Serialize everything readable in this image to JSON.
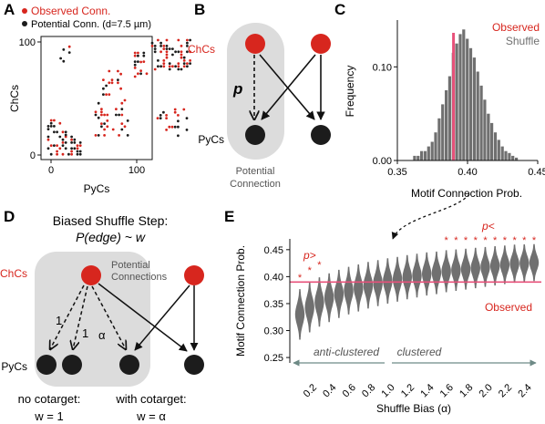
{
  "colors": {
    "red": "#d7261e",
    "dark": "#1c1c1c",
    "gray": "#707070",
    "pink": "#e8517a",
    "shade": "#dcdcdc",
    "arrow_gray": "#6e8a86"
  },
  "panels": {
    "a": "A",
    "b": "B",
    "c": "C",
    "d": "D",
    "e": "E"
  },
  "panel_a": {
    "legend_observed": "Observed Conn.",
    "legend_potential": "Potential Conn. (d=7.5 µm)",
    "ylabel": "ChCs",
    "xlabel": "PyCs",
    "yticks": [
      "100",
      "0"
    ],
    "xticks": [
      "0",
      "100"
    ]
  },
  "panel_b": {
    "chc_label": "ChCs",
    "pyc_label": "PyCs",
    "p_label": "p",
    "potential_label_1": "Potential",
    "potential_label_2": "Connection"
  },
  "panel_d": {
    "title_1": "Biased Shuffle Step:",
    "title_2": "P(edge) ~ w",
    "chc_label": "ChCs",
    "pyc_label": "PyCs",
    "potential_label_1": "Potential",
    "potential_label_2": "Connections",
    "w1": "1",
    "w2": "1",
    "w3": "α",
    "no_cotarget": "no cotarget:",
    "no_cotarget_w": "w = 1",
    "with_cotarget": "with cotarget:",
    "with_cotarget_w": "w = α"
  },
  "chart_data": [
    {
      "type": "histogram",
      "panel": "C",
      "xlabel": "Motif Connection Prob.",
      "ylabel": "Frequency",
      "xlim": [
        0.35,
        0.45
      ],
      "ylim": [
        0,
        0.15
      ],
      "xticks": [
        "0.35",
        "0.40",
        "0.45"
      ],
      "yticks": [
        "0.00",
        "0.10"
      ],
      "legend": [
        "Observed",
        "Shuffle"
      ],
      "observed": 0.39,
      "bins": [
        0.3625,
        0.365,
        0.3675,
        0.37,
        0.3725,
        0.375,
        0.3775,
        0.38,
        0.3825,
        0.385,
        0.3875,
        0.39,
        0.3925,
        0.395,
        0.3975,
        0.4,
        0.4025,
        0.405,
        0.4075,
        0.41,
        0.4125,
        0.415,
        0.4175,
        0.42,
        0.4225,
        0.425,
        0.4275,
        0.43,
        0.4325,
        0.435
      ],
      "values": [
        0.005,
        0.005,
        0.01,
        0.01,
        0.015,
        0.02,
        0.03,
        0.045,
        0.06,
        0.075,
        0.09,
        0.115,
        0.125,
        0.135,
        0.14,
        0.13,
        0.12,
        0.11,
        0.095,
        0.08,
        0.065,
        0.05,
        0.04,
        0.03,
        0.022,
        0.015,
        0.01,
        0.008,
        0.005,
        0.003
      ]
    },
    {
      "type": "violin",
      "panel": "E",
      "xlabel": "Shuffle Bias (α)",
      "ylabel": "Motif Connection Prob.",
      "ylim": [
        0.24,
        0.47
      ],
      "yticks": [
        "0.25",
        "0.30",
        "0.35",
        "0.40",
        "0.45"
      ],
      "xticks": [
        "0.2",
        "0.4",
        "0.6",
        "0.8",
        "1.0",
        "1.2",
        "1.4",
        "1.6",
        "1.8",
        "2.0",
        "2.2",
        "2.4"
      ],
      "observed": 0.39,
      "observed_label": "Observed",
      "p_low_label": "p>",
      "p_high_label": "p<",
      "anti_clustered_label": "anti-clustered",
      "clustered_label": "clustered",
      "alpha": [
        0.1,
        0.2,
        0.3,
        0.4,
        0.5,
        0.6,
        0.7,
        0.8,
        0.9,
        1.0,
        1.1,
        1.2,
        1.3,
        1.4,
        1.5,
        1.6,
        1.7,
        1.8,
        1.9,
        2.0,
        2.1,
        2.2,
        2.3,
        2.4,
        2.5
      ],
      "medians": [
        0.33,
        0.343,
        0.353,
        0.361,
        0.368,
        0.374,
        0.379,
        0.384,
        0.388,
        0.392,
        0.395,
        0.399,
        0.402,
        0.405,
        0.407,
        0.41,
        0.412,
        0.414,
        0.416,
        0.418,
        0.42,
        0.422,
        0.424,
        0.425,
        0.426
      ],
      "sig_low": [
        true,
        true,
        true,
        false,
        false,
        false,
        false,
        false,
        false,
        false,
        false,
        false,
        false,
        false,
        false,
        false,
        false,
        false,
        false,
        false,
        false,
        false,
        false,
        false,
        false
      ],
      "sig_high": [
        false,
        false,
        false,
        false,
        false,
        false,
        false,
        false,
        false,
        false,
        false,
        false,
        false,
        false,
        false,
        true,
        true,
        true,
        true,
        true,
        true,
        true,
        true,
        true,
        true
      ]
    }
  ]
}
